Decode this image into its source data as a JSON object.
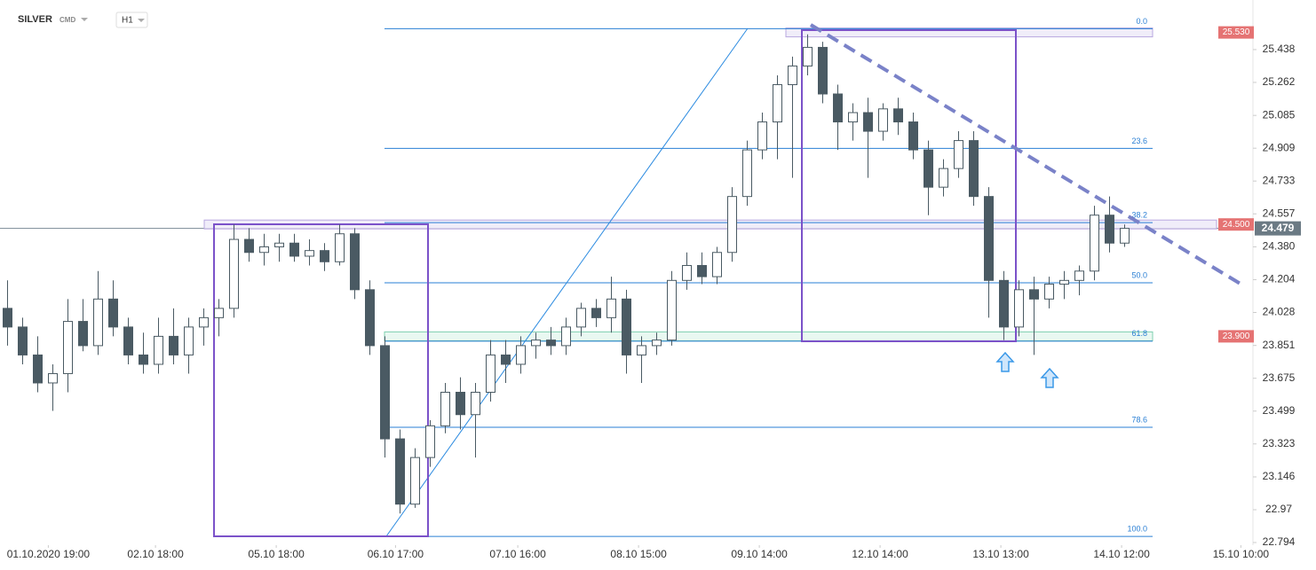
{
  "header": {
    "symbol": "SILVER",
    "market": "CMD",
    "interval": "H1"
  },
  "chart_data": {
    "type": "candlestick",
    "open": [
      24.05,
      23.95,
      23.8,
      23.65,
      23.7,
      23.98,
      23.85,
      24.1,
      23.95,
      23.8,
      23.75,
      23.9,
      23.8,
      23.95,
      24.0,
      24.05,
      24.42,
      24.35,
      24.38,
      24.4,
      24.33,
      24.36,
      24.3,
      24.45,
      24.15,
      23.85,
      23.35,
      23.0,
      23.25,
      23.42,
      23.6,
      23.48,
      23.6,
      23.8,
      23.75,
      23.85,
      23.88,
      23.85,
      23.95,
      24.05,
      24.0,
      24.1,
      23.8,
      23.85,
      23.88,
      24.2,
      24.28,
      24.22,
      24.35,
      24.65,
      24.9,
      25.05,
      25.25,
      25.35,
      25.45,
      25.2,
      25.05,
      25.1,
      25.0,
      25.12,
      25.05,
      24.9,
      24.7,
      24.8,
      24.95,
      24.65,
      24.2,
      23.95,
      24.15,
      24.1,
      24.18,
      24.2,
      24.25,
      24.55,
      24.4
    ],
    "high": [
      24.2,
      24.0,
      23.9,
      23.75,
      24.1,
      24.1,
      24.25,
      24.2,
      24.0,
      23.92,
      24.0,
      24.05,
      24.0,
      24.05,
      24.1,
      24.5,
      24.48,
      24.45,
      24.45,
      24.45,
      24.42,
      24.4,
      24.5,
      24.48,
      24.2,
      23.9,
      23.4,
      23.3,
      23.45,
      23.65,
      23.68,
      23.65,
      23.88,
      23.88,
      23.9,
      23.92,
      23.95,
      24.0,
      24.08,
      24.1,
      24.22,
      24.15,
      23.9,
      23.92,
      24.25,
      24.35,
      24.35,
      24.38,
      24.7,
      24.95,
      25.1,
      25.3,
      25.4,
      25.52,
      25.48,
      25.25,
      25.15,
      25.18,
      25.15,
      25.18,
      25.1,
      24.95,
      24.85,
      25.0,
      25.0,
      24.7,
      24.25,
      24.2,
      24.22,
      24.22,
      24.25,
      24.28,
      24.6,
      24.65,
      24.5
    ],
    "low": [
      23.85,
      23.75,
      23.6,
      23.5,
      23.6,
      23.82,
      23.8,
      23.9,
      23.75,
      23.7,
      23.7,
      23.75,
      23.7,
      23.85,
      23.9,
      24.0,
      24.3,
      24.28,
      24.3,
      24.3,
      24.28,
      24.25,
      24.28,
      24.1,
      23.8,
      23.25,
      22.95,
      22.98,
      23.2,
      23.38,
      23.4,
      23.25,
      23.55,
      23.65,
      23.7,
      23.78,
      23.8,
      23.8,
      23.9,
      23.95,
      23.92,
      23.7,
      23.65,
      23.8,
      23.85,
      24.15,
      24.18,
      24.18,
      24.3,
      24.6,
      24.85,
      24.85,
      24.75,
      25.3,
      25.15,
      24.9,
      24.95,
      24.75,
      24.95,
      24.98,
      24.85,
      24.55,
      24.65,
      24.75,
      24.6,
      24.0,
      23.88,
      23.9,
      23.8,
      24.05,
      24.1,
      24.12,
      24.2,
      24.35,
      24.38
    ],
    "close": [
      23.95,
      23.8,
      23.65,
      23.7,
      23.98,
      23.85,
      24.1,
      23.95,
      23.8,
      23.75,
      23.9,
      23.8,
      23.95,
      24.0,
      24.05,
      24.42,
      24.35,
      24.38,
      24.4,
      24.33,
      24.36,
      24.3,
      24.45,
      24.15,
      23.85,
      23.35,
      23.0,
      23.25,
      23.42,
      23.6,
      23.48,
      23.6,
      23.8,
      23.75,
      23.85,
      23.88,
      23.85,
      23.95,
      24.05,
      24.0,
      24.1,
      23.8,
      23.85,
      23.88,
      24.2,
      24.28,
      24.22,
      24.35,
      24.65,
      24.9,
      25.05,
      25.25,
      25.35,
      25.45,
      25.2,
      25.05,
      25.1,
      25.0,
      25.12,
      25.05,
      24.9,
      24.7,
      24.8,
      24.95,
      24.65,
      24.2,
      23.95,
      24.15,
      24.1,
      24.18,
      24.2,
      24.25,
      24.55,
      24.4,
      24.479
    ],
    "up_color": "#ffffff",
    "down_color": "#4a5a63",
    "edge_color": "#4a5a63",
    "xlim": [
      0,
      83
    ],
    "xticks": [
      {
        "value": 3.2,
        "label": "01.10.2020 19:00"
      },
      {
        "value": 10.3,
        "label": "02.10 18:00"
      },
      {
        "value": 18.3,
        "label": "05.10 18:00"
      },
      {
        "value": 26.2,
        "label": "06.10 17:00"
      },
      {
        "value": 34.3,
        "label": "07.10 16:00"
      },
      {
        "value": 42.3,
        "label": "08.10 15:00"
      },
      {
        "value": 50.3,
        "label": "09.10 14:00"
      },
      {
        "value": 58.3,
        "label": "12.10 14:00"
      },
      {
        "value": 66.3,
        "label": "13.10 13:00"
      },
      {
        "value": 74.3,
        "label": "14.10 12:00"
      },
      {
        "value": 82.2,
        "label": "15.10 10:00"
      }
    ],
    "ylim": [
      22.756,
      25.704
    ],
    "yticks": [
      25.438,
      25.262,
      25.085,
      24.909,
      24.733,
      24.557,
      {
        "value": 24.38,
        "label": "24.380"
      },
      24.204,
      24.028,
      23.851,
      23.675,
      23.499,
      23.323,
      23.146,
      22.97,
      22.794
    ],
    "fib_levels": [
      {
        "value": 25.55,
        "label": "0.0"
      },
      {
        "value": 24.908,
        "label": "23.6"
      },
      {
        "value": 24.51,
        "label": "38.2"
      },
      {
        "value": 24.187,
        "label": "50.0"
      },
      {
        "value": 23.874,
        "label": "61.8"
      },
      {
        "value": 23.412,
        "label": "78.6"
      },
      {
        "value": 22.827,
        "label": "100.0"
      }
    ],
    "price_levels": [
      {
        "value": 25.53,
        "label": "25.530"
      },
      {
        "value": 24.5,
        "label": "24.500"
      },
      {
        "value": 23.9,
        "label": "23.900"
      }
    ],
    "last_price": 24.479
  }
}
